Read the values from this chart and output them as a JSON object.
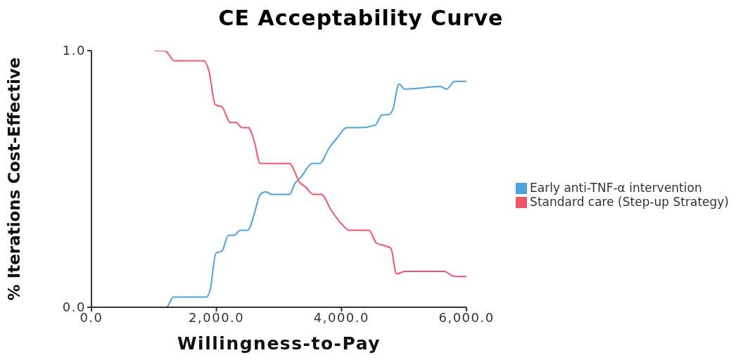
{
  "chart_data": {
    "type": "line",
    "title": "CE Acceptability Curve",
    "xlabel": "Willingness-to-Pay",
    "ylabel": "% Iterations Cost-Effective",
    "xlim": [
      0,
      6000
    ],
    "xticks": [
      {
        "value": 0,
        "label": "0.0"
      },
      {
        "value": 2000,
        "label": "2,000.0"
      },
      {
        "value": 4000,
        "label": "4,000.0"
      },
      {
        "value": 6000,
        "label": "6,000.0"
      }
    ],
    "ylim": [
      0,
      1
    ],
    "yticks": [
      {
        "value": 0,
        "label": "0.0"
      },
      {
        "value": 1,
        "label": "1.0"
      }
    ],
    "grid": false,
    "legend": "right",
    "marker": "none",
    "line_style": "solid",
    "series": [
      {
        "name": "Early anti-TNF-α intervention",
        "color": "#4ca3dd",
        "x": [
          1010,
          1200,
          1310,
          1400,
          1840,
          1900,
          1990,
          2090,
          2190,
          2280,
          2380,
          2500,
          2600,
          2700,
          2790,
          2880,
          3070,
          3170,
          3250,
          3360,
          3530,
          3650,
          3800,
          3930,
          4080,
          4310,
          4540,
          4650,
          4750,
          4820,
          4920,
          5010,
          5580,
          5680,
          5810,
          6000
        ],
        "values": [
          0,
          0,
          0.04,
          0.04,
          0.04,
          0.07,
          0.21,
          0.22,
          0.28,
          0.28,
          0.3,
          0.3,
          0.36,
          0.44,
          0.45,
          0.44,
          0.44,
          0.44,
          0.48,
          0.51,
          0.56,
          0.56,
          0.62,
          0.66,
          0.7,
          0.7,
          0.71,
          0.75,
          0.75,
          0.77,
          0.87,
          0.85,
          0.86,
          0.85,
          0.88,
          0.88
        ]
      },
      {
        "name": "Standard care (Step-up Strategy)",
        "color": "#f0566a",
        "x": [
          1010,
          1170,
          1330,
          1460,
          1800,
          1880,
          1980,
          2090,
          2220,
          2310,
          2410,
          2510,
          2600,
          2700,
          2810,
          3040,
          3170,
          3230,
          3320,
          3420,
          3550,
          3680,
          3830,
          4020,
          4120,
          4440,
          4560,
          4690,
          4790,
          4880,
          5010,
          5640,
          5810,
          6000
        ],
        "values": [
          1,
          1,
          0.96,
          0.96,
          0.96,
          0.92,
          0.79,
          0.78,
          0.72,
          0.72,
          0.7,
          0.7,
          0.65,
          0.56,
          0.56,
          0.56,
          0.56,
          0.54,
          0.49,
          0.47,
          0.44,
          0.44,
          0.38,
          0.32,
          0.3,
          0.3,
          0.25,
          0.24,
          0.23,
          0.13,
          0.14,
          0.14,
          0.12,
          0.12
        ]
      }
    ]
  }
}
